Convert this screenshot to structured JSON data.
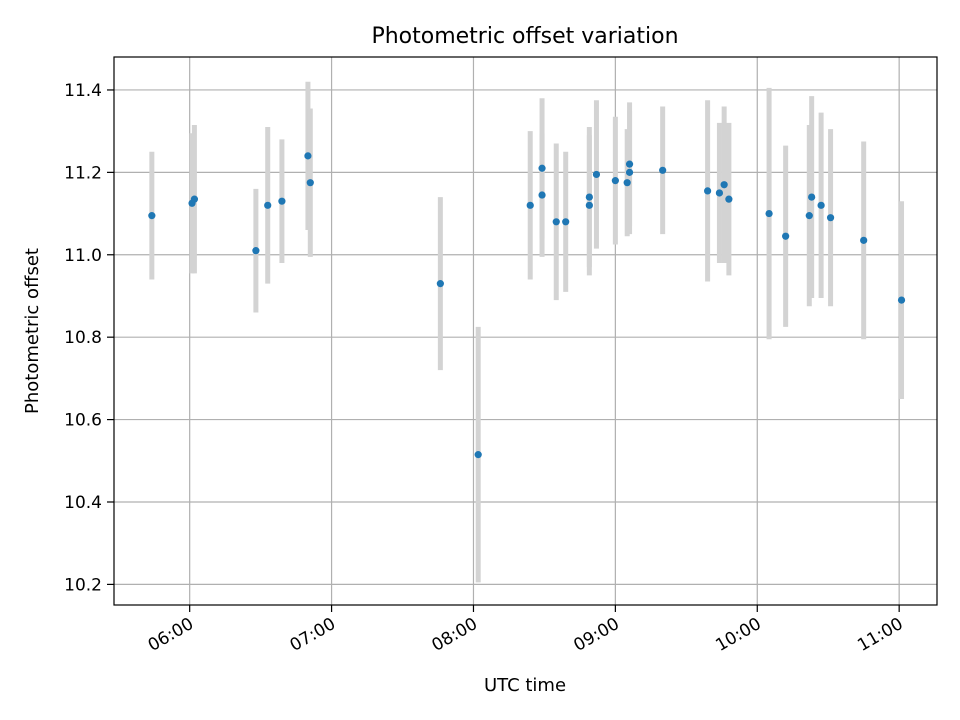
{
  "chart_data": {
    "type": "scatter",
    "title": "Photometric offset variation",
    "xlabel": "UTC time",
    "ylabel": "Photometric offset",
    "x_unit": "hours (UTC)",
    "xlim": [
      "05:28",
      "11:16"
    ],
    "ylim": [
      10.15,
      11.48
    ],
    "x_ticks": [
      "06:00",
      "07:00",
      "08:00",
      "09:00",
      "10:00",
      "11:00"
    ],
    "y_ticks": [
      "10.2",
      "10.4",
      "10.6",
      "10.8",
      "11.0",
      "11.2",
      "11.4"
    ],
    "grid": true,
    "legend": false,
    "series": [
      {
        "marker_color": "#1f77b4",
        "errorbar_color": "#d3d3d3",
        "points": [
          {
            "t": "05:44",
            "y": 11.095,
            "err": 0.155
          },
          {
            "t": "06:01",
            "y": 11.125,
            "err": 0.17
          },
          {
            "t": "06:02",
            "y": 11.135,
            "err": 0.18
          },
          {
            "t": "06:28",
            "y": 11.01,
            "err": 0.15
          },
          {
            "t": "06:33",
            "y": 11.12,
            "err": 0.19
          },
          {
            "t": "06:39",
            "y": 11.13,
            "err": 0.15
          },
          {
            "t": "06:50",
            "y": 11.24,
            "err": 0.18
          },
          {
            "t": "06:51",
            "y": 11.175,
            "err": 0.18
          },
          {
            "t": "07:46",
            "y": 10.93,
            "err": 0.21
          },
          {
            "t": "08:02",
            "y": 10.515,
            "err": 0.31
          },
          {
            "t": "08:24",
            "y": 11.12,
            "err": 0.18
          },
          {
            "t": "08:29",
            "y": 11.145,
            "err": 0.15
          },
          {
            "t": "08:29",
            "y": 11.21,
            "err": 0.17
          },
          {
            "t": "08:35",
            "y": 11.08,
            "err": 0.19
          },
          {
            "t": "08:39",
            "y": 11.08,
            "err": 0.17
          },
          {
            "t": "08:49",
            "y": 11.14,
            "err": 0.17
          },
          {
            "t": "08:49",
            "y": 11.12,
            "err": 0.17
          },
          {
            "t": "08:52",
            "y": 11.195,
            "err": 0.18
          },
          {
            "t": "09:00",
            "y": 11.18,
            "err": 0.155
          },
          {
            "t": "09:05",
            "y": 11.175,
            "err": 0.13
          },
          {
            "t": "09:06",
            "y": 11.2,
            "err": 0.15
          },
          {
            "t": "09:06",
            "y": 11.22,
            "err": 0.15
          },
          {
            "t": "09:20",
            "y": 11.205,
            "err": 0.155
          },
          {
            "t": "09:39",
            "y": 11.155,
            "err": 0.22
          },
          {
            "t": "09:44",
            "y": 11.15,
            "err": 0.17
          },
          {
            "t": "09:46",
            "y": 11.17,
            "err": 0.19
          },
          {
            "t": "09:48",
            "y": 11.135,
            "err": 0.185
          },
          {
            "t": "10:05",
            "y": 11.1,
            "err": 0.305
          },
          {
            "t": "10:12",
            "y": 11.045,
            "err": 0.22
          },
          {
            "t": "10:22",
            "y": 11.095,
            "err": 0.22
          },
          {
            "t": "10:23",
            "y": 11.14,
            "err": 0.245
          },
          {
            "t": "10:27",
            "y": 11.12,
            "err": 0.225
          },
          {
            "t": "10:31",
            "y": 11.09,
            "err": 0.215
          },
          {
            "t": "10:45",
            "y": 11.035,
            "err": 0.24
          },
          {
            "t": "11:01",
            "y": 10.89,
            "err": 0.24
          }
        ]
      }
    ]
  }
}
